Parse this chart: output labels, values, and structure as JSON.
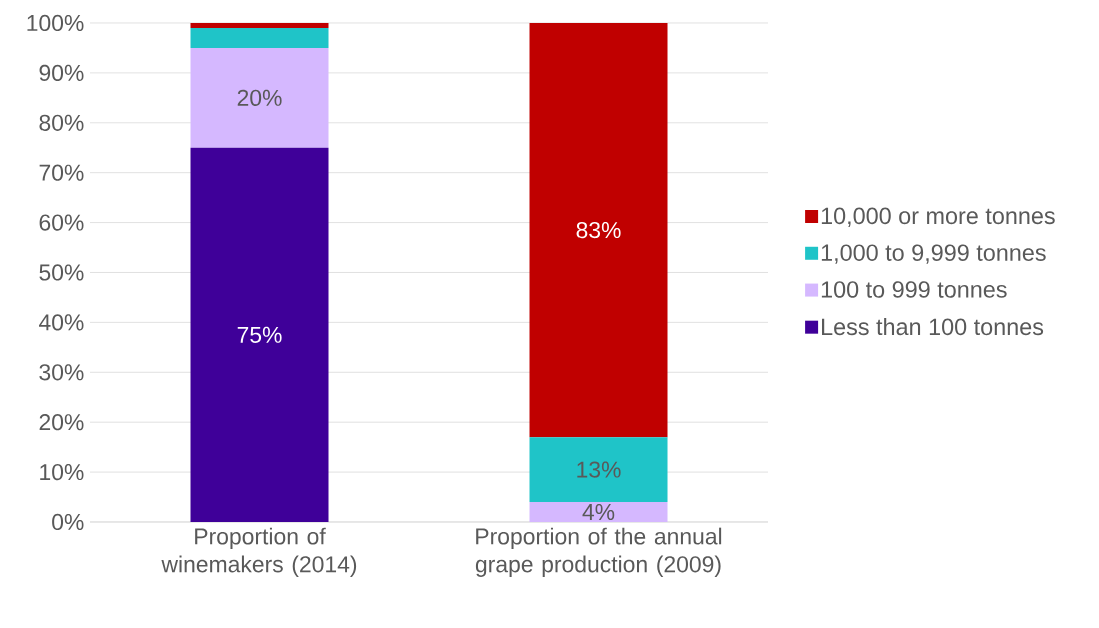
{
  "chart_data": {
    "type": "bar",
    "stacked": true,
    "categories": [
      "Proportion of winemakers (2014)",
      "Proportion of the annual grape production (2009)"
    ],
    "series": [
      {
        "name": "Less than 100 tonnes",
        "color": "#3f0099",
        "values": [
          75,
          0
        ],
        "value_labels": [
          "75%",
          null
        ]
      },
      {
        "name": "100 to 999 tonnes",
        "color": "#d5b8ff",
        "values": [
          20,
          4
        ],
        "value_labels": [
          "20%",
          "4%"
        ]
      },
      {
        "name": "1,000 to 9,999 tonnes",
        "color": "#1fc4c8",
        "values": [
          4,
          13
        ],
        "value_labels": [
          null,
          "13%"
        ]
      },
      {
        "name": "10,000 or more tonnes",
        "color": "#c00000",
        "values": [
          1,
          83
        ],
        "value_labels": [
          null,
          "83%"
        ]
      }
    ],
    "ylim": [
      0,
      100
    ],
    "yticks": [
      {
        "value": 0,
        "label": "0%"
      },
      {
        "value": 10,
        "label": "10%"
      },
      {
        "value": 20,
        "label": "20%"
      },
      {
        "value": 30,
        "label": "30%"
      },
      {
        "value": 40,
        "label": "40%"
      },
      {
        "value": 50,
        "label": "50%"
      },
      {
        "value": 60,
        "label": "60%"
      },
      {
        "value": 70,
        "label": "70%"
      },
      {
        "value": 80,
        "label": "80%"
      },
      {
        "value": 90,
        "label": "90%"
      },
      {
        "value": 100,
        "label": "100%"
      }
    ],
    "grid": "y",
    "legend": "right"
  }
}
